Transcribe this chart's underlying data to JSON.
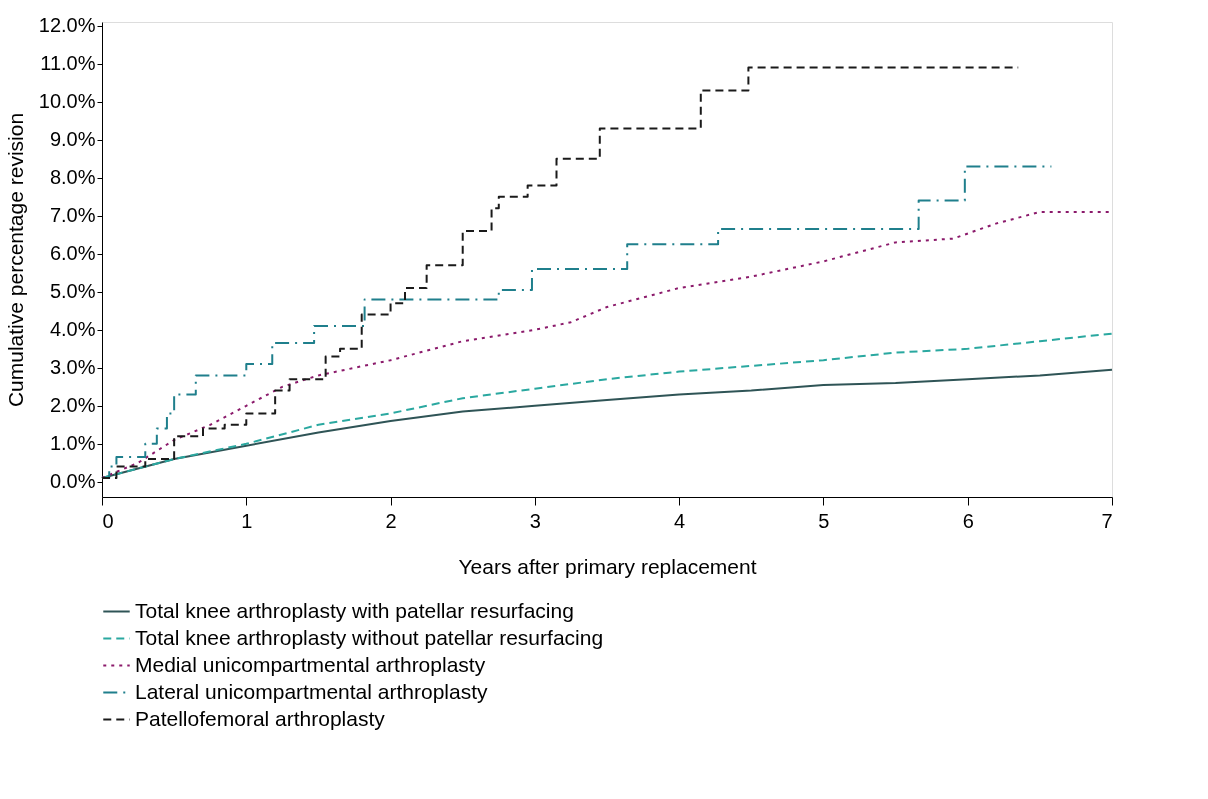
{
  "chart_data": {
    "type": "line",
    "xlabel": "Years after primary replacement",
    "ylabel": "Cumulative percentage revision",
    "xlim": [
      0,
      7
    ],
    "xticks": [
      0,
      1,
      2,
      3,
      4,
      5,
      6,
      7
    ],
    "ylim": [
      -0.4,
      12.1
    ],
    "yticks": [
      {
        "value": 0,
        "label": "0.0%"
      },
      {
        "value": 1,
        "label": "1.0%"
      },
      {
        "value": 2,
        "label": "2.0%"
      },
      {
        "value": 3,
        "label": "3.0%"
      },
      {
        "value": 4,
        "label": "4.0%"
      },
      {
        "value": 5,
        "label": "5.0%"
      },
      {
        "value": 6,
        "label": "6.0%"
      },
      {
        "value": 7,
        "label": "7.0%"
      },
      {
        "value": 8,
        "label": "8.0%"
      },
      {
        "value": 9,
        "label": "9.0%"
      },
      {
        "value": 10,
        "label": "10.0%"
      },
      {
        "value": 11,
        "label": "11.0%"
      },
      {
        "value": 12,
        "label": "12.0%"
      }
    ],
    "grid": false,
    "legend": "bottom",
    "marker": "none",
    "series": [
      {
        "name": "Total knee arthroplasty with patellar resurfacing",
        "color": "#2f5456",
        "line_style": "solid",
        "x": [
          0,
          0.5,
          1.0,
          1.5,
          2.0,
          2.5,
          3.0,
          3.5,
          4.0,
          4.5,
          5.0,
          5.5,
          6.0,
          6.5,
          7.0
        ],
        "values": [
          0.1,
          0.6,
          0.95,
          1.3,
          1.6,
          1.85,
          2.0,
          2.15,
          2.3,
          2.4,
          2.55,
          2.6,
          2.7,
          2.8,
          2.95
        ]
      },
      {
        "name": "Total knee arthroplasty without patellar resurfacing",
        "color": "#2aa8a0",
        "line_style": "dashed",
        "x": [
          0,
          0.5,
          1.0,
          1.5,
          2.0,
          2.5,
          3.0,
          3.5,
          4.0,
          4.5,
          5.0,
          5.5,
          6.0,
          6.5,
          7.0
        ],
        "values": [
          0.1,
          0.6,
          1.0,
          1.5,
          1.8,
          2.2,
          2.45,
          2.7,
          2.9,
          3.05,
          3.2,
          3.4,
          3.5,
          3.7,
          3.9
        ]
      },
      {
        "name": "Medial unicompartmental arthroplasty",
        "color": "#8b1a6b",
        "line_style": "dotted",
        "x": [
          0,
          0.25,
          0.5,
          0.75,
          1.0,
          1.25,
          1.5,
          1.75,
          2.0,
          2.5,
          3.0,
          3.25,
          3.5,
          4.0,
          4.5,
          5.0,
          5.5,
          5.9,
          6.2,
          6.5,
          7.0
        ],
        "values": [
          0.1,
          0.5,
          1.1,
          1.5,
          2.0,
          2.5,
          2.8,
          3.0,
          3.2,
          3.7,
          4.0,
          4.2,
          4.6,
          5.1,
          5.4,
          5.8,
          6.3,
          6.4,
          6.8,
          7.1,
          7.1
        ]
      },
      {
        "name": "Lateral unicompartmental arthroplasty",
        "color": "#1f7f8c",
        "line_style": "dashdot",
        "type": "step",
        "x": [
          0,
          0.05,
          0.1,
          0.3,
          0.38,
          0.45,
          0.5,
          0.65,
          1.0,
          1.18,
          1.47,
          1.82,
          2.75,
          2.98,
          3.64,
          4.27,
          5.66,
          5.98,
          6.58
        ],
        "values": [
          0.1,
          0.4,
          0.65,
          1.0,
          1.4,
          1.8,
          2.3,
          2.8,
          3.1,
          3.65,
          4.1,
          4.8,
          5.05,
          5.6,
          6.25,
          6.65,
          7.4,
          8.3,
          8.3
        ]
      },
      {
        "name": "Patellofemoral arthroplasty",
        "color": "#1a1a1a",
        "line_style": "dashed",
        "type": "step",
        "x": [
          0,
          0.1,
          0.3,
          0.5,
          0.7,
          0.85,
          1.0,
          1.2,
          1.3,
          1.55,
          1.65,
          1.8,
          2.0,
          2.1,
          2.25,
          2.5,
          2.7,
          2.75,
          2.95,
          3.15,
          3.45,
          4.15,
          4.48,
          6.35
        ],
        "values": [
          0.1,
          0.4,
          0.6,
          1.2,
          1.4,
          1.5,
          1.8,
          2.4,
          2.7,
          3.3,
          3.5,
          4.4,
          4.7,
          5.1,
          5.7,
          6.6,
          7.2,
          7.5,
          7.8,
          8.5,
          9.3,
          10.3,
          10.9,
          10.9
        ]
      }
    ]
  }
}
